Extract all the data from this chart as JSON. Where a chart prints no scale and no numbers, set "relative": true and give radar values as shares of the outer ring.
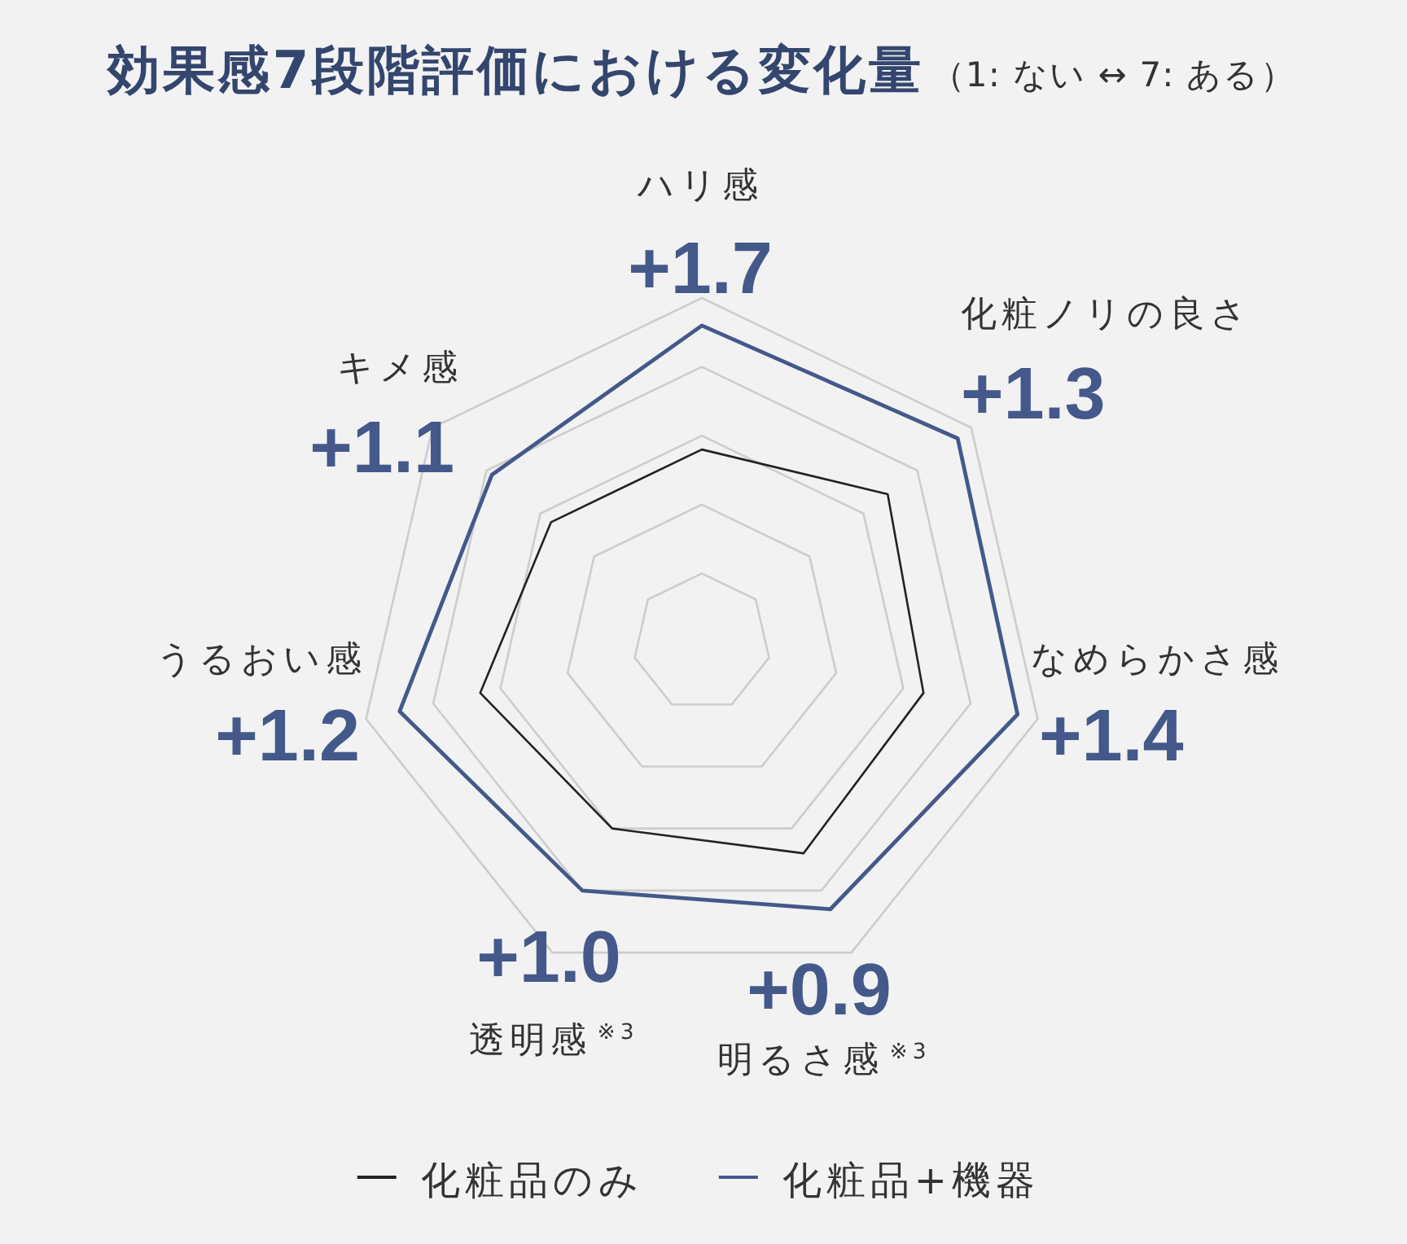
{
  "chart_data": {
    "type": "radar",
    "title": "効果感7段階評価における変化量",
    "subtitle": "（1: ない ↔ 7: ある）",
    "categories": [
      "ハリ感",
      "化粧ノリの良さ",
      "なめらかさ感",
      "明るさ感$^{※3}$",
      "透明感$^{※3}$",
      "うるおい感",
      "キメ感"
    ],
    "relative": true,
    "series": [
      {
        "name": "化粧品のみ",
        "color": "#222222",
        "values": [
          0.56,
          0.69,
          0.66,
          0.68,
          0.6,
          0.66,
          0.56
        ]
      },
      {
        "name": "化粧品+機器",
        "color": "#44598a",
        "values": [
          0.92,
          0.95,
          0.94,
          0.86,
          0.8,
          0.9,
          0.78
        ]
      }
    ],
    "annotations": [
      "+1.7",
      "+1.3",
      "+1.4",
      "+0.9",
      "+1.0",
      "+1.2",
      "+1.1"
    ],
    "grid": true,
    "legend": "bottom"
  }
}
